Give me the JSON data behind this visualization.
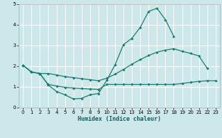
{
  "xlabel": "Humidex (Indice chaleur)",
  "background_color": "#cde8ea",
  "grid_color": "#ffffff",
  "line_color": "#1a7a6e",
  "xlim": [
    -0.5,
    23.5
  ],
  "ylim": [
    0,
    5
  ],
  "xticks": [
    0,
    1,
    2,
    3,
    4,
    5,
    6,
    7,
    8,
    9,
    10,
    11,
    12,
    13,
    14,
    15,
    16,
    17,
    18,
    19,
    20,
    21,
    22,
    23
  ],
  "yticks": [
    0,
    1,
    2,
    3,
    4,
    5
  ],
  "series": [
    {
      "x": [
        0,
        1,
        2,
        3,
        4,
        5,
        6,
        7,
        8,
        9,
        10,
        11,
        12,
        13,
        14,
        15,
        16,
        17,
        18
      ],
      "y": [
        2.05,
        1.72,
        1.65,
        1.1,
        0.78,
        0.62,
        0.42,
        0.45,
        0.62,
        0.68,
        1.32,
        2.08,
        3.05,
        3.35,
        3.88,
        4.65,
        4.8,
        4.25,
        3.45
      ]
    },
    {
      "x": [
        0,
        1,
        2,
        3,
        4,
        5,
        6,
        7,
        8,
        9,
        10,
        11,
        12,
        13,
        14,
        15,
        16,
        17,
        18,
        19,
        20,
        21,
        22
      ],
      "y": [
        2.05,
        1.72,
        1.65,
        1.65,
        1.58,
        1.5,
        1.45,
        1.4,
        1.35,
        1.3,
        1.42,
        1.62,
        1.85,
        2.1,
        2.32,
        2.52,
        2.68,
        2.78,
        2.85,
        2.72,
        2.62,
        2.5,
        1.9
      ]
    },
    {
      "x": [
        0,
        1,
        2,
        3,
        4,
        5,
        6,
        7,
        8,
        9,
        10,
        11,
        12,
        13,
        14,
        15,
        16,
        17,
        18,
        19,
        20,
        21,
        22,
        23
      ],
      "y": [
        2.05,
        1.72,
        1.65,
        1.12,
        1.05,
        0.98,
        0.95,
        0.92,
        0.9,
        0.88,
        1.12,
        1.12,
        1.12,
        1.12,
        1.12,
        1.12,
        1.12,
        1.12,
        1.12,
        1.17,
        1.22,
        1.27,
        1.3,
        1.3
      ]
    }
  ]
}
